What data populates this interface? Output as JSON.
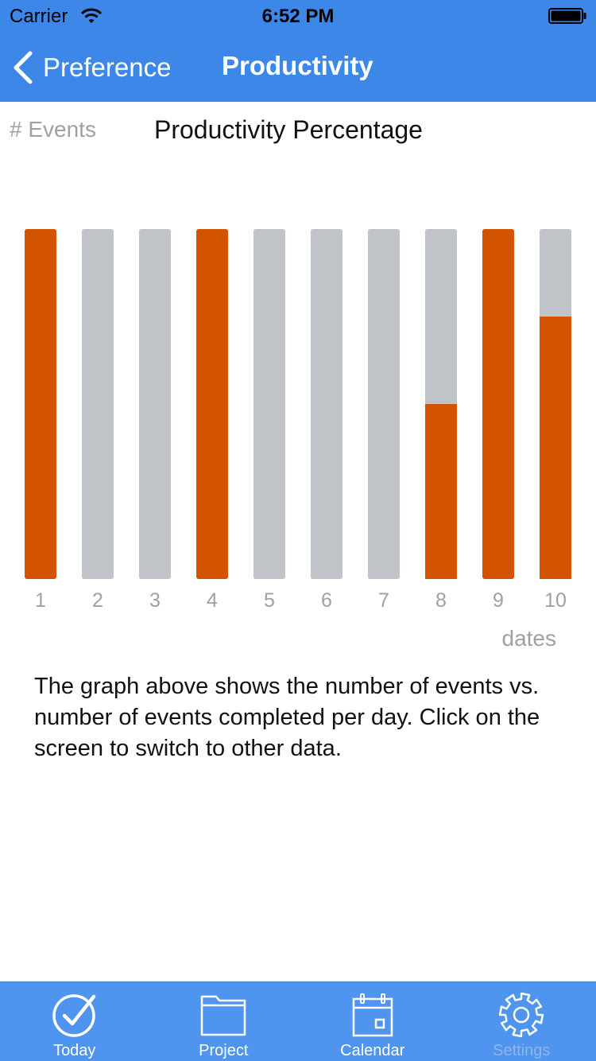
{
  "status_bar": {
    "carrier": "Carrier",
    "time": "6:52 PM"
  },
  "nav": {
    "back_label": "Preference",
    "title": "Productivity"
  },
  "chart_header": {
    "events_label": "# Events",
    "title": "Productivity Percentage"
  },
  "chart_data": {
    "type": "bar",
    "title": "Productivity Percentage",
    "ylabel": "# Events",
    "xlabel": "dates",
    "categories": [
      "1",
      "2",
      "3",
      "4",
      "5",
      "6",
      "7",
      "8",
      "9",
      "10"
    ],
    "series": [
      {
        "values": [
          1,
          1,
          1,
          1,
          1,
          1,
          1,
          1,
          1,
          1
        ]
      },
      {
        "values": [
          1,
          0,
          0,
          1,
          0,
          0,
          0,
          0.5,
          1,
          0.75
        ]
      }
    ],
    "ylim": [
      0,
      1
    ],
    "grid": false
  },
  "colors": {
    "nav_bg": "#3d87e8",
    "completed": "#d35400",
    "total": "#c0c4c8",
    "tabbar_bg": "#4f94ee"
  },
  "description": "The graph above shows the number of events vs. number of events completed per day. Click on the screen to switch to other data.",
  "tabs": [
    {
      "label": "Today",
      "icon": "checkmark-circle-icon"
    },
    {
      "label": "Project",
      "icon": "folder-icon"
    },
    {
      "label": "Calendar",
      "icon": "calendar-icon"
    },
    {
      "label": "Settings",
      "icon": "gear-icon"
    }
  ]
}
